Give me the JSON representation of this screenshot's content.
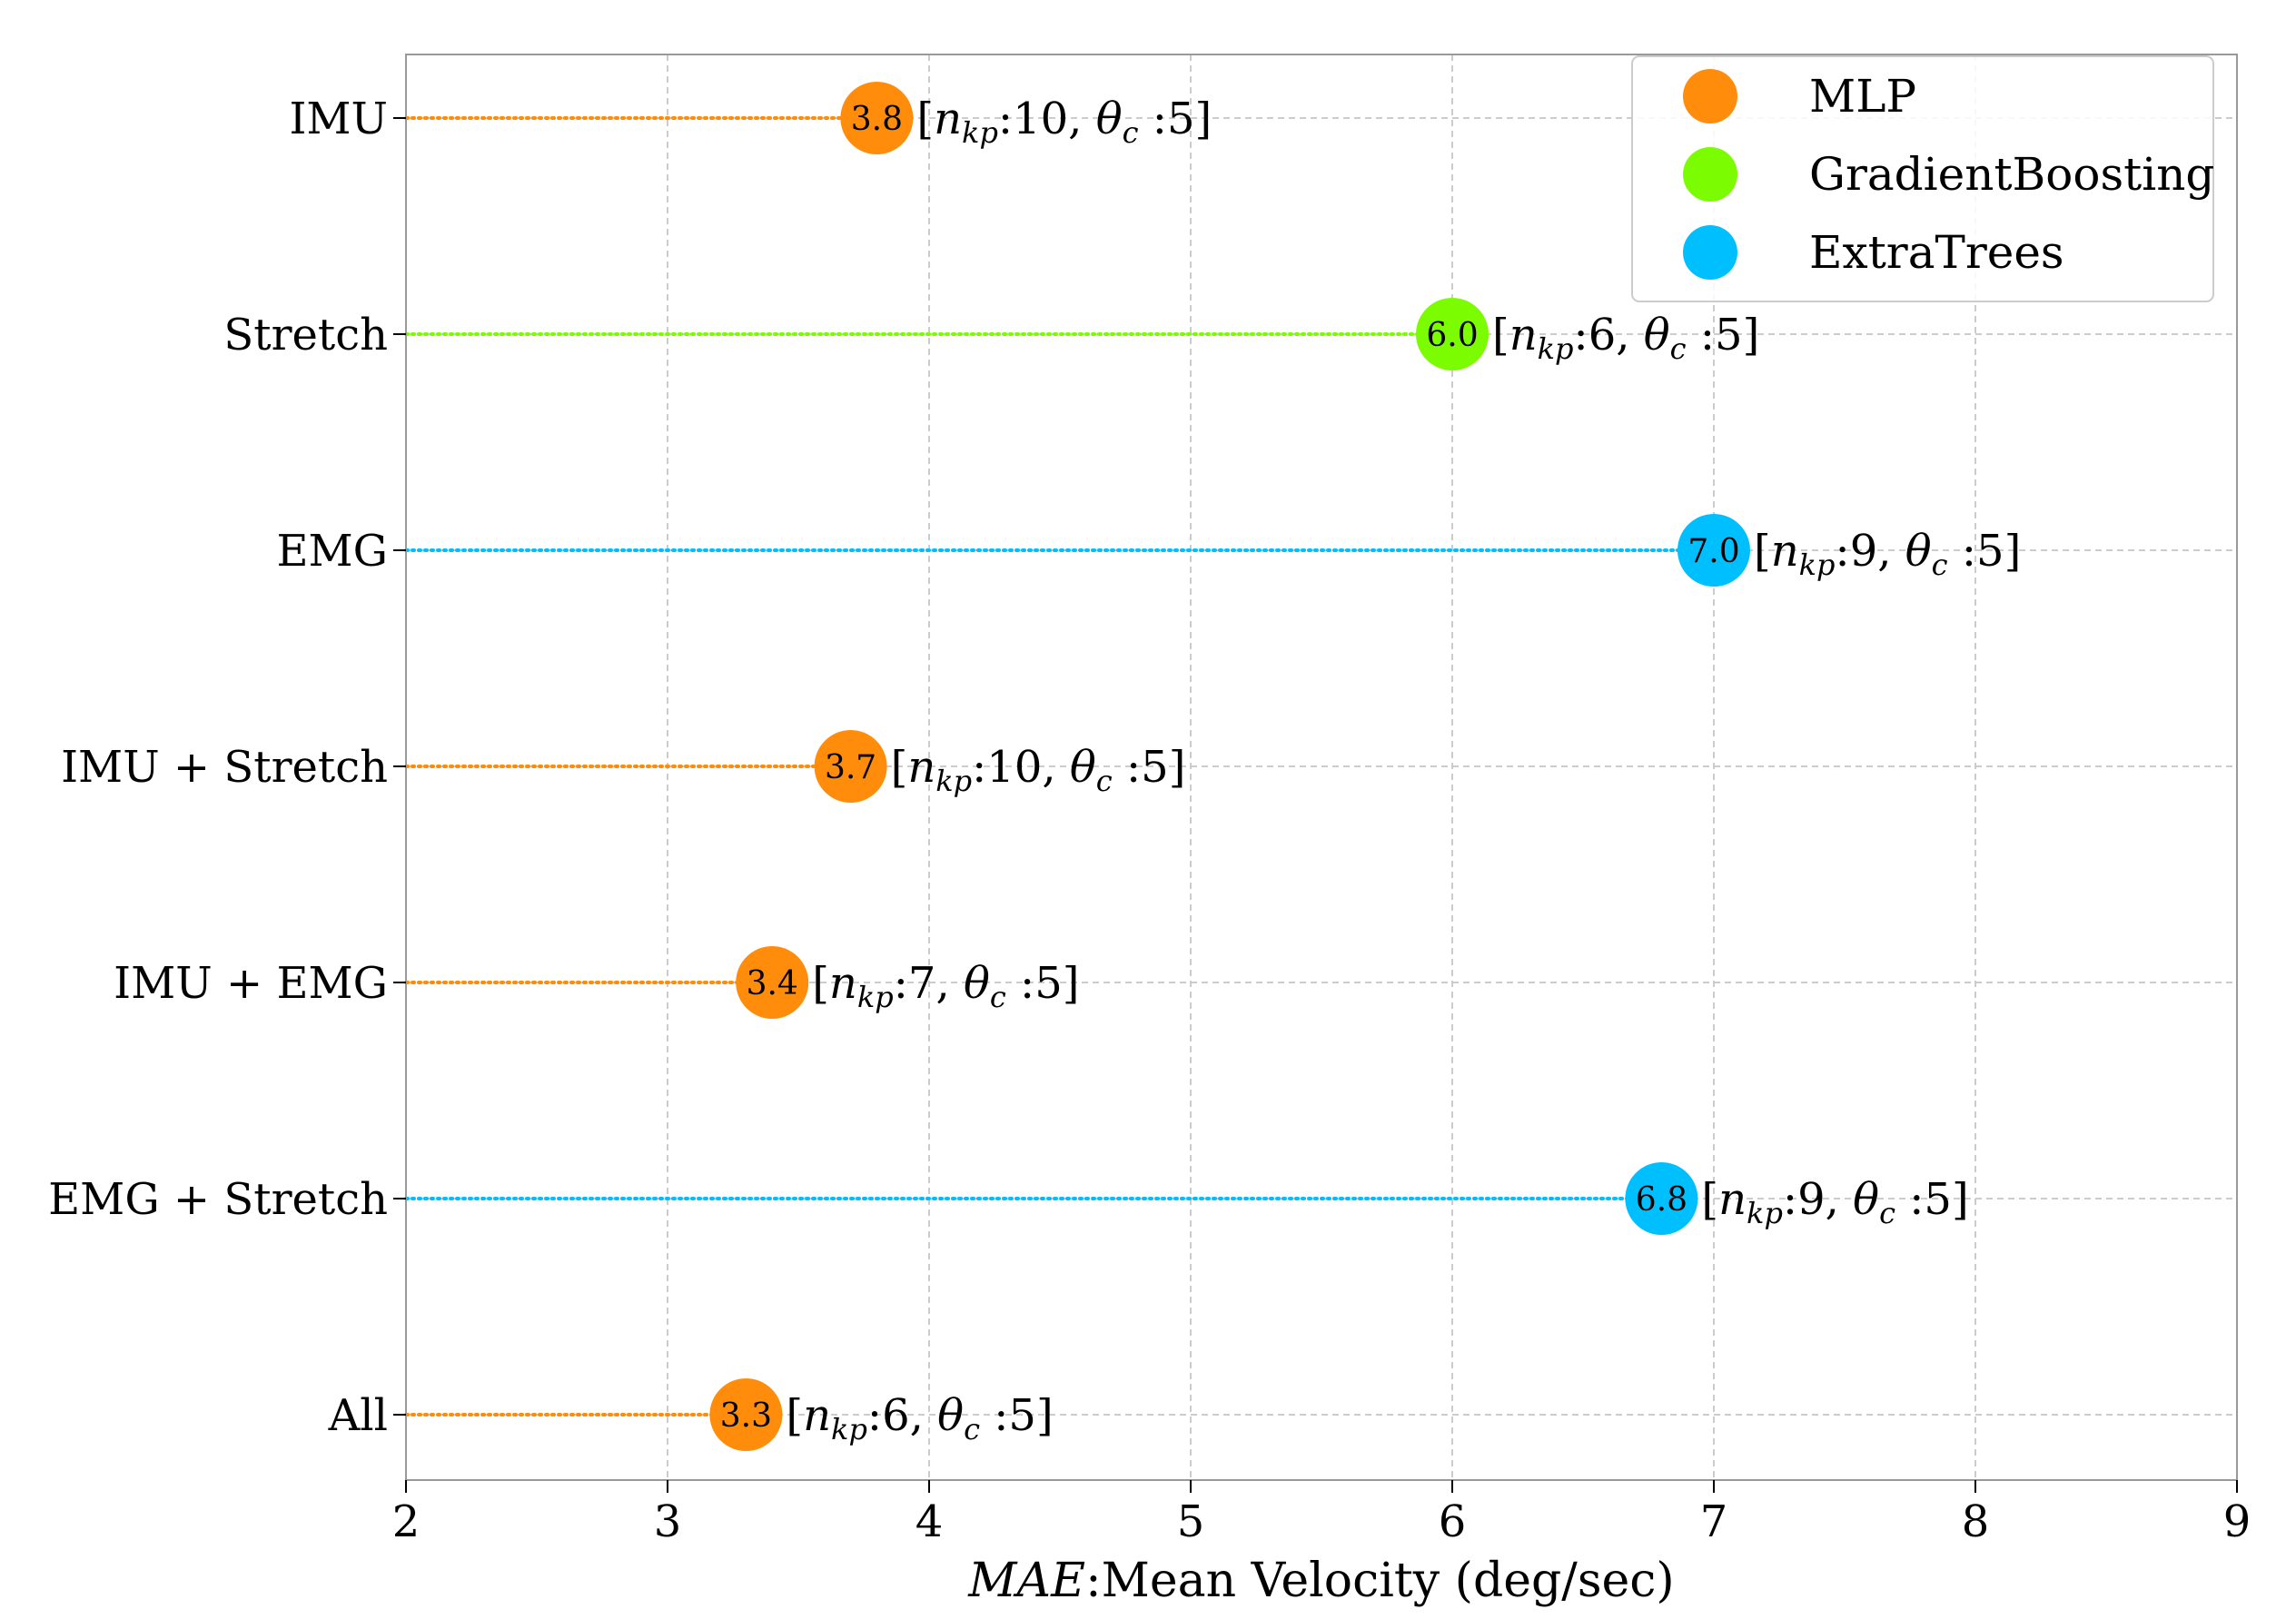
{
  "chart_data": {
    "type": "lollipop",
    "xlabel_math": "MAE",
    "xlabel_rest": ":Mean Velocity (deg/sec)",
    "xlim": [
      2,
      9
    ],
    "xticks": [
      2,
      3,
      4,
      5,
      6,
      7,
      8,
      9
    ],
    "grid": true,
    "legend_position": "top-right",
    "models": [
      {
        "name": "MLP",
        "color": "#ff8c0a"
      },
      {
        "name": "GradientBoosting",
        "color": "#7cfc00"
      },
      {
        "name": "ExtraTrees",
        "color": "#00bfff"
      }
    ],
    "categories": [
      "IMU",
      "Stretch",
      "EMG",
      "IMU + Stretch",
      "IMU + EMG",
      "EMG + Stretch",
      "All"
    ],
    "points": [
      {
        "category": "IMU",
        "model": "MLP",
        "value": 3.8,
        "label": "3.8",
        "n_kp": "10",
        "theta_c": "5"
      },
      {
        "category": "Stretch",
        "model": "GradientBoosting",
        "value": 6.0,
        "label": "6.0",
        "n_kp": "6",
        "theta_c": "5"
      },
      {
        "category": "EMG",
        "model": "ExtraTrees",
        "value": 7.0,
        "label": "7.0",
        "n_kp": "9",
        "theta_c": "5"
      },
      {
        "category": "IMU + Stretch",
        "model": "MLP",
        "value": 3.7,
        "label": "3.7",
        "n_kp": "10",
        "theta_c": "5"
      },
      {
        "category": "IMU + EMG",
        "model": "MLP",
        "value": 3.4,
        "label": "3.4",
        "n_kp": "7",
        "theta_c": "5"
      },
      {
        "category": "EMG + Stretch",
        "model": "ExtraTrees",
        "value": 6.8,
        "label": "6.8",
        "n_kp": "9",
        "theta_c": "5"
      },
      {
        "category": "All",
        "model": "MLP",
        "value": 3.3,
        "label": "3.3",
        "n_kp": "6",
        "theta_c": "5"
      }
    ],
    "annotation_template": {
      "n_symbol": "n",
      "n_sub": "kp",
      "theta_symbol": "θ",
      "theta_sub": "c"
    }
  }
}
